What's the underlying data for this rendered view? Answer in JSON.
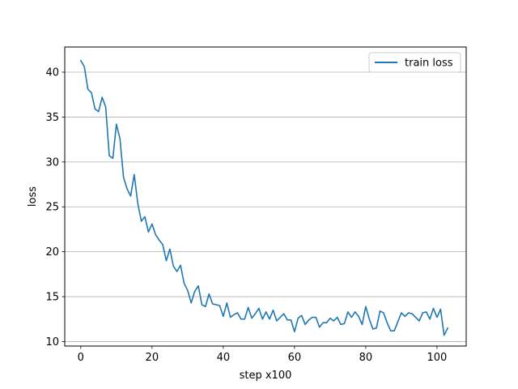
{
  "chart_data": {
    "type": "line",
    "title": "",
    "xlabel": "step x100",
    "ylabel": "loss",
    "xlim": [
      -4.5,
      108.2
    ],
    "ylim": [
      9.5,
      42.8
    ],
    "xticks": [
      0,
      20,
      40,
      60,
      80,
      100
    ],
    "yticks": [
      10,
      15,
      20,
      25,
      30,
      35,
      40
    ],
    "grid": "horizontal",
    "legend_position": "top-right",
    "series": [
      {
        "name": "train loss",
        "color": "#1f77b4",
        "x": [
          0,
          1,
          2,
          3,
          4,
          5,
          6,
          7,
          8,
          9,
          10,
          11,
          12,
          13,
          14,
          15,
          16,
          17,
          18,
          19,
          20,
          21,
          22,
          23,
          24,
          25,
          26,
          27,
          28,
          29,
          30,
          31,
          32,
          33,
          34,
          35,
          36,
          37,
          38,
          39,
          40,
          41,
          42,
          43,
          44,
          45,
          46,
          47,
          48,
          49,
          50,
          51,
          52,
          53,
          54,
          55,
          56,
          57,
          58,
          59,
          60,
          61,
          62,
          63,
          64,
          65,
          66,
          67,
          68,
          69,
          70,
          71,
          72,
          73,
          74,
          75,
          76,
          77,
          78,
          79,
          80,
          81,
          82,
          83,
          84,
          85,
          86,
          87,
          88,
          89,
          90,
          91,
          92,
          93,
          94,
          95,
          96,
          97,
          98,
          99,
          100,
          101,
          102,
          103
        ],
        "values": [
          41.3,
          40.6,
          38.1,
          37.7,
          35.9,
          35.6,
          37.2,
          36.1,
          30.7,
          30.4,
          34.2,
          32.6,
          28.3,
          27.0,
          26.2,
          28.6,
          25.4,
          23.4,
          23.9,
          22.2,
          23.1,
          21.9,
          21.3,
          20.8,
          19.0,
          20.3,
          18.4,
          17.8,
          18.5,
          16.5,
          15.7,
          14.3,
          15.6,
          16.2,
          14.1,
          13.9,
          15.3,
          14.2,
          14.1,
          14.0,
          12.8,
          14.3,
          12.7,
          13.0,
          13.2,
          12.5,
          12.5,
          13.8,
          12.6,
          13.1,
          13.7,
          12.5,
          13.3,
          12.5,
          13.5,
          12.3,
          12.7,
          13.1,
          12.4,
          12.4,
          11.1,
          12.6,
          12.9,
          11.9,
          12.4,
          12.7,
          12.7,
          11.6,
          12.1,
          12.1,
          12.6,
          12.3,
          12.7,
          11.9,
          12.0,
          13.3,
          12.7,
          13.3,
          12.8,
          11.9,
          13.9,
          12.5,
          11.4,
          11.5,
          13.4,
          13.2,
          12.1,
          11.2,
          11.2,
          12.2,
          13.2,
          12.8,
          13.2,
          13.1,
          12.7,
          12.3,
          13.2,
          13.3,
          12.5,
          13.7,
          12.7,
          13.6,
          10.7,
          11.5
        ]
      }
    ]
  }
}
